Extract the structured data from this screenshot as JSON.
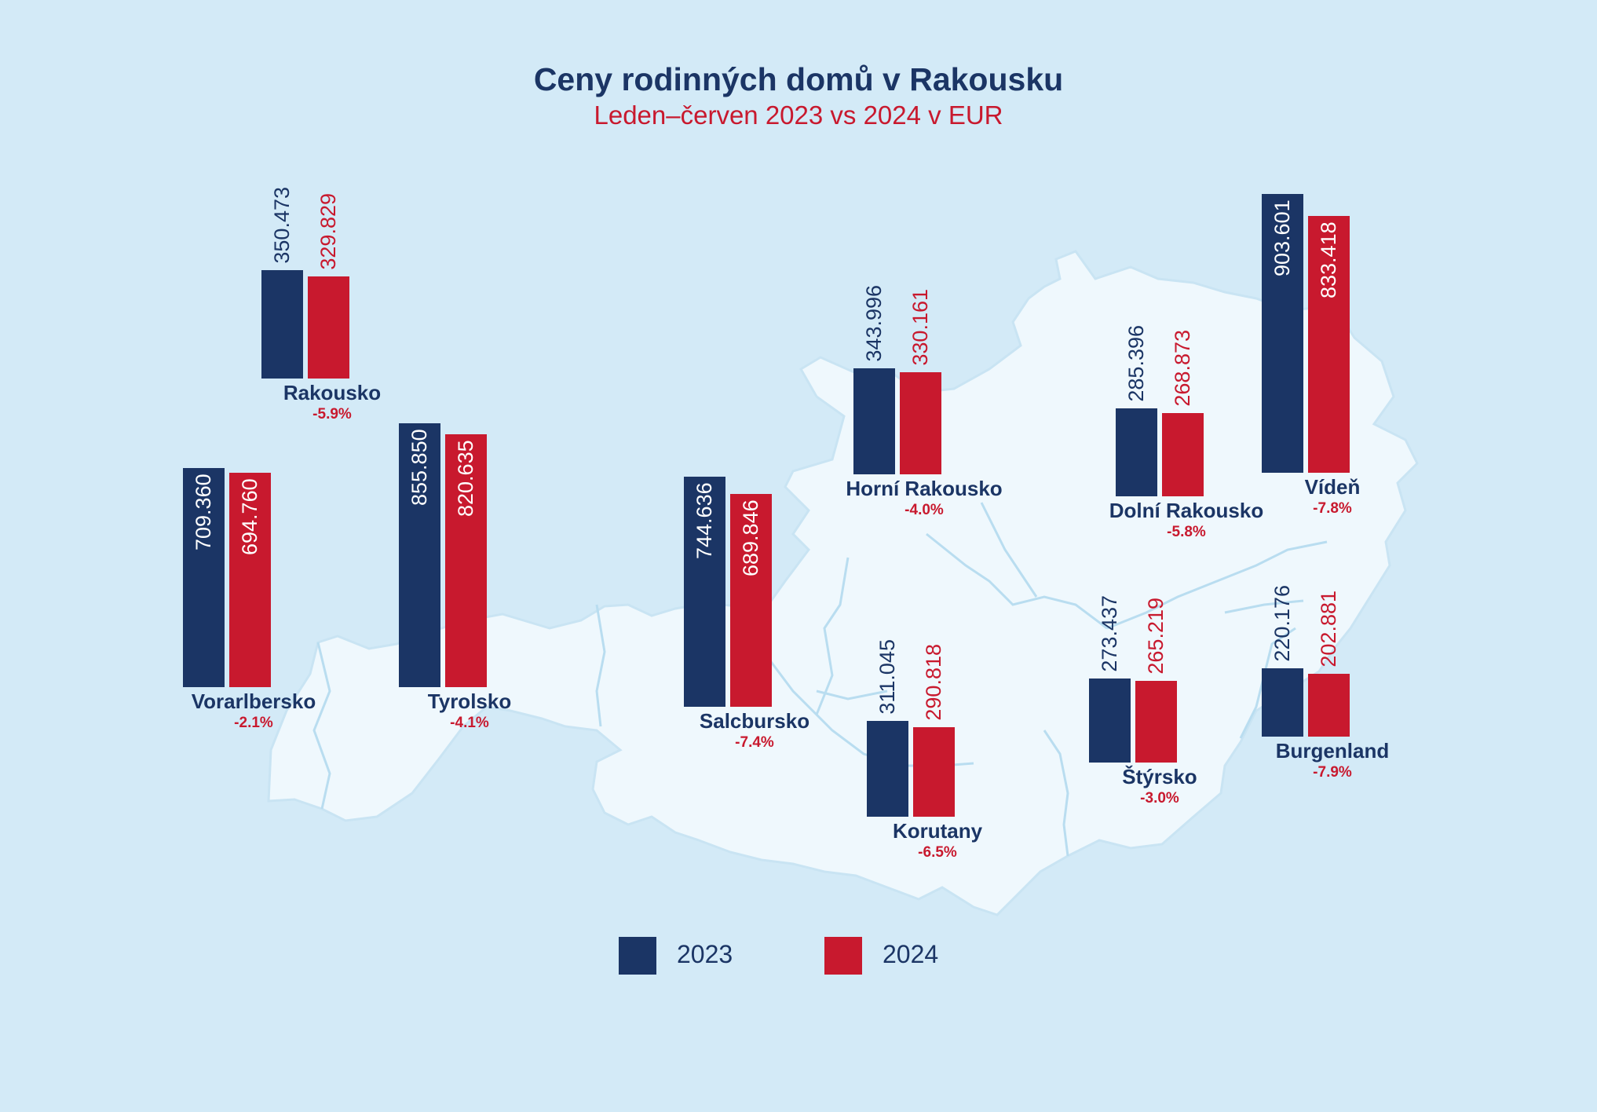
{
  "title": "Ceny rodinných domů v Rakousku",
  "subtitle": "Leden–červen 2023 vs 2024 v EUR",
  "colors": {
    "y2023": "#1b3565",
    "y2024": "#c8192e",
    "background": "#d3eaf7",
    "map": "#eff8fd",
    "borders": "#b9ddf0"
  },
  "legend": [
    {
      "label": "2023",
      "color": "#1b3565"
    },
    {
      "label": "2024",
      "color": "#c8192e"
    }
  ],
  "chart_data": {
    "type": "bar",
    "title": "Ceny rodinných domů v Rakousku",
    "subtitle": "Leden–červen 2023 vs 2024 v EUR",
    "series_names": [
      "2023",
      "2024"
    ],
    "regions": [
      {
        "name": "Rakousko",
        "v2023": 350473,
        "v2024": 329829,
        "label2023": "350.473",
        "label2024": "329.829",
        "change": "-5.9%"
      },
      {
        "name": "Vorarlbersko",
        "v2023": 709360,
        "v2024": 694760,
        "label2023": "709.360",
        "label2024": "694.760",
        "change": "-2.1%"
      },
      {
        "name": "Tyrolsko",
        "v2023": 855850,
        "v2024": 820635,
        "label2023": "855.850",
        "label2024": "820.635",
        "change": "-4.1%"
      },
      {
        "name": "Salcbursko",
        "v2023": 744636,
        "v2024": 689846,
        "label2023": "744.636",
        "label2024": "689.846",
        "change": "-7.4%"
      },
      {
        "name": "Horní Rakousko",
        "v2023": 343996,
        "v2024": 330161,
        "label2023": "343.996",
        "label2024": "330.161",
        "change": "-4.0%"
      },
      {
        "name": "Korutany",
        "v2023": 311045,
        "v2024": 290818,
        "label2023": "311.045",
        "label2024": "290.818",
        "change": "-6.5%"
      },
      {
        "name": "Dolní Rakousko",
        "v2023": 285396,
        "v2024": 268873,
        "label2023": "285.396",
        "label2024": "268.873",
        "change": "-5.8%"
      },
      {
        "name": "Štýrsko",
        "v2023": 273437,
        "v2024": 265219,
        "label2023": "273.437",
        "label2024": "265.219",
        "change": "-3.0%"
      },
      {
        "name": "Vídeň",
        "v2023": 903601,
        "v2024": 833418,
        "label2023": "903.601",
        "label2024": "833.418",
        "change": "-7.8%"
      },
      {
        "name": "Burgenland",
        "v2023": 220176,
        "v2024": 202881,
        "label2023": "220.176",
        "label2024": "202.881",
        "change": "-7.9%"
      }
    ]
  }
}
